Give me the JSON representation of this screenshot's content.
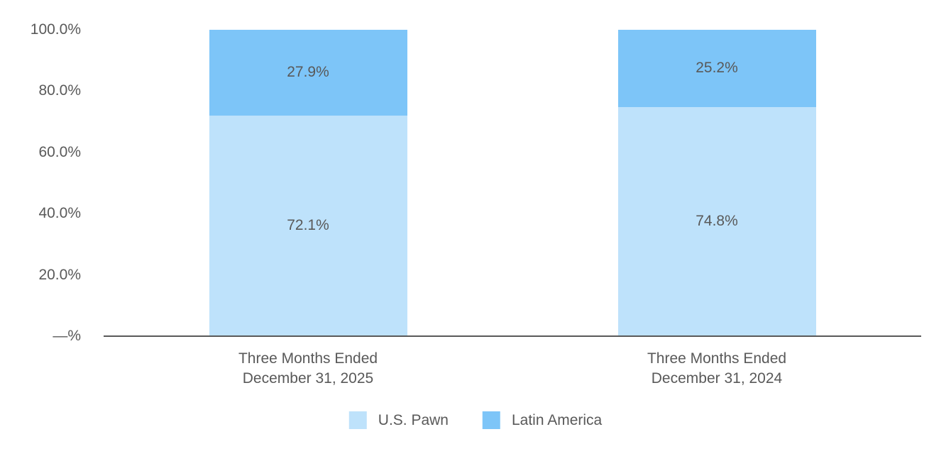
{
  "chart_data": {
    "type": "bar",
    "variant": "stacked-percent-column",
    "title": "",
    "categories": [
      [
        "Three Months Ended",
        "December 31, 2025"
      ],
      [
        "Three Months Ended",
        "December 31, 2024"
      ]
    ],
    "series": [
      {
        "name": "U.S. Pawn",
        "color": "#BEE2FB",
        "values": [
          72.1,
          74.8
        ],
        "labels": [
          "72.1%",
          "74.8%"
        ]
      },
      {
        "name": "Latin America",
        "color": "#7DC5F8",
        "values": [
          27.9,
          25.2
        ],
        "labels": [
          "27.9%",
          "25.2%"
        ]
      }
    ],
    "y_axis": {
      "ticks": [
        {
          "value": 100,
          "label": "100.0%"
        },
        {
          "value": 80,
          "label": "80.0%"
        },
        {
          "value": 60,
          "label": "60.0%"
        },
        {
          "value": 40,
          "label": "40.0%"
        },
        {
          "value": 20,
          "label": "20.0%"
        },
        {
          "value": 0,
          "label": "—%"
        }
      ],
      "ylim": [
        0,
        100
      ],
      "grid": false
    },
    "legend": {
      "position": "bottom-center",
      "entries": [
        {
          "label": "U.S. Pawn",
          "color": "#BEE2FB"
        },
        {
          "label": "Latin America",
          "color": "#7DC5F8"
        }
      ]
    },
    "colors": {
      "text": "#595959",
      "axis_line": "#595959",
      "background": "#FFFFFF"
    }
  }
}
